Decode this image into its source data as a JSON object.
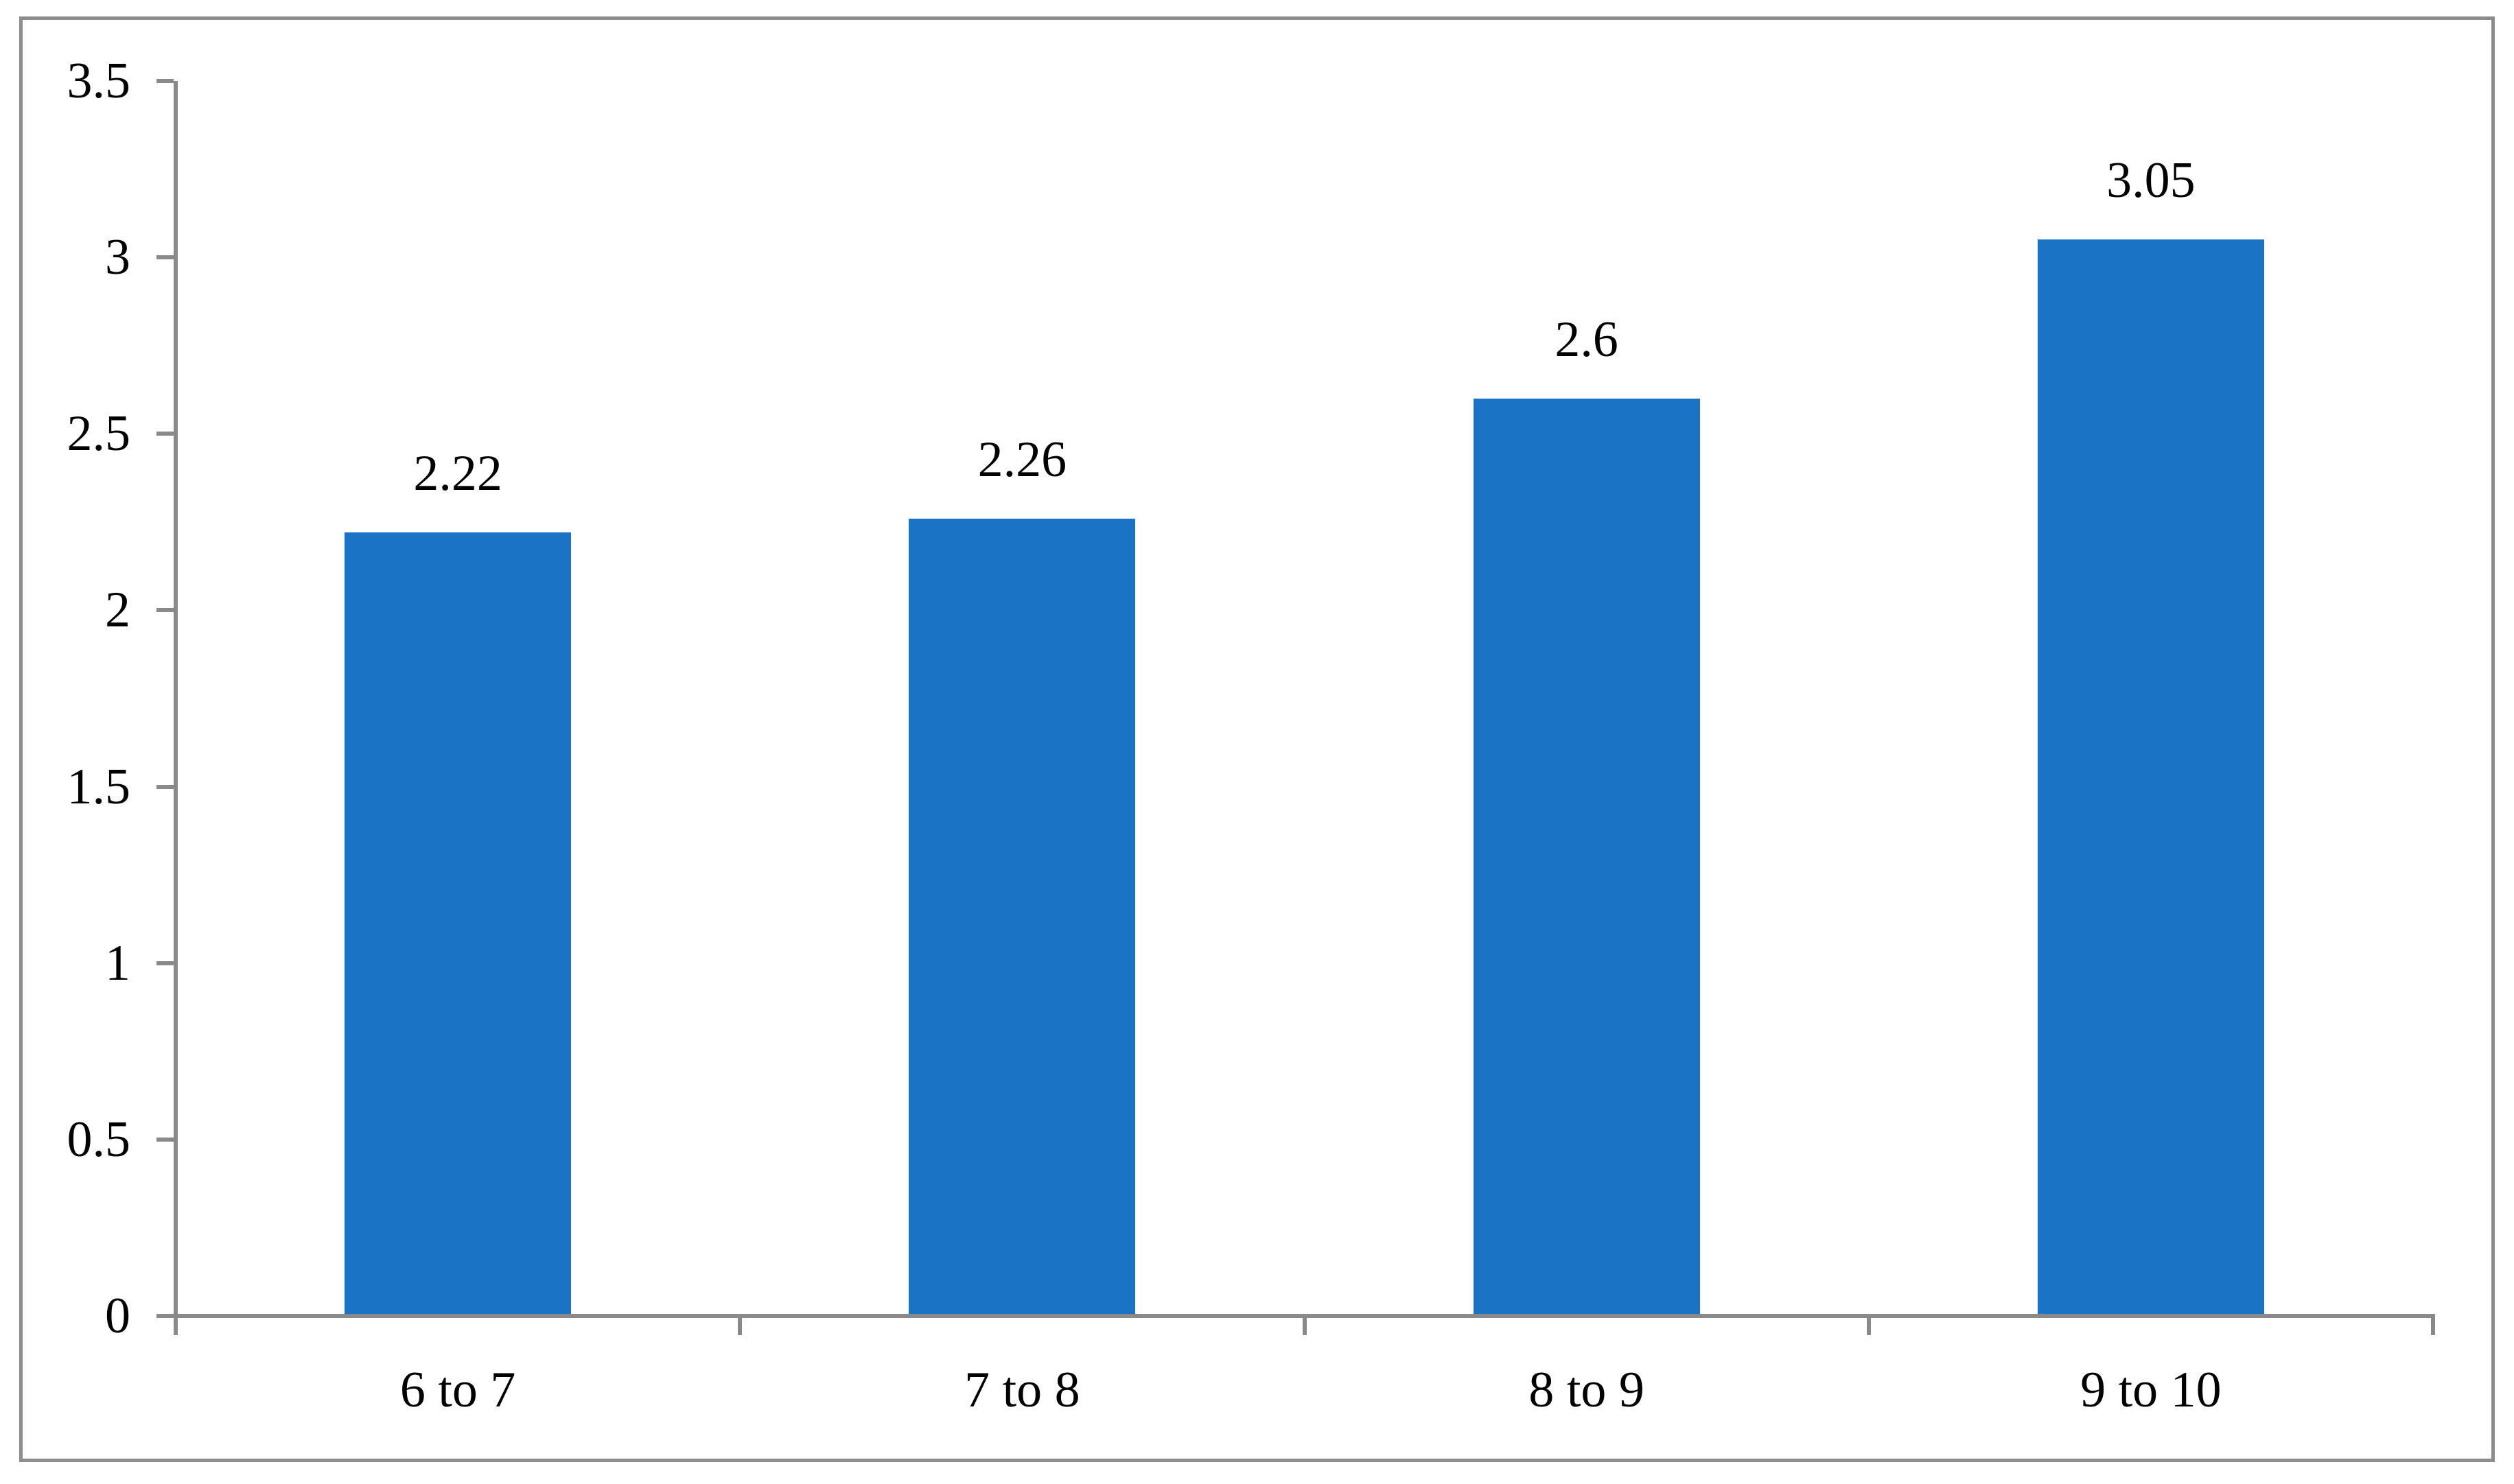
{
  "chart_data": {
    "type": "bar",
    "title": "",
    "xlabel": "",
    "ylabel": "",
    "categories": [
      "6 to 7",
      "7 to 8",
      "8 to 9",
      "9 to 10"
    ],
    "values": [
      2.22,
      2.26,
      2.6,
      3.05
    ],
    "value_labels": [
      "2.22",
      "2.26",
      "2.6",
      "3.05"
    ],
    "ylim": [
      0,
      3.5
    ],
    "ytick_step": 0.5,
    "ytick_labels": [
      "0",
      "0.5",
      "1",
      "1.5",
      "2",
      "2.5",
      "3",
      "3.5"
    ],
    "grid": "off",
    "legend": "none",
    "series_name": ""
  },
  "colors": {
    "bar": "#1B73C5",
    "axis": "#898989",
    "frame_border": "#8C8C8C",
    "text": "#000000",
    "background": "#FFFFFF"
  }
}
